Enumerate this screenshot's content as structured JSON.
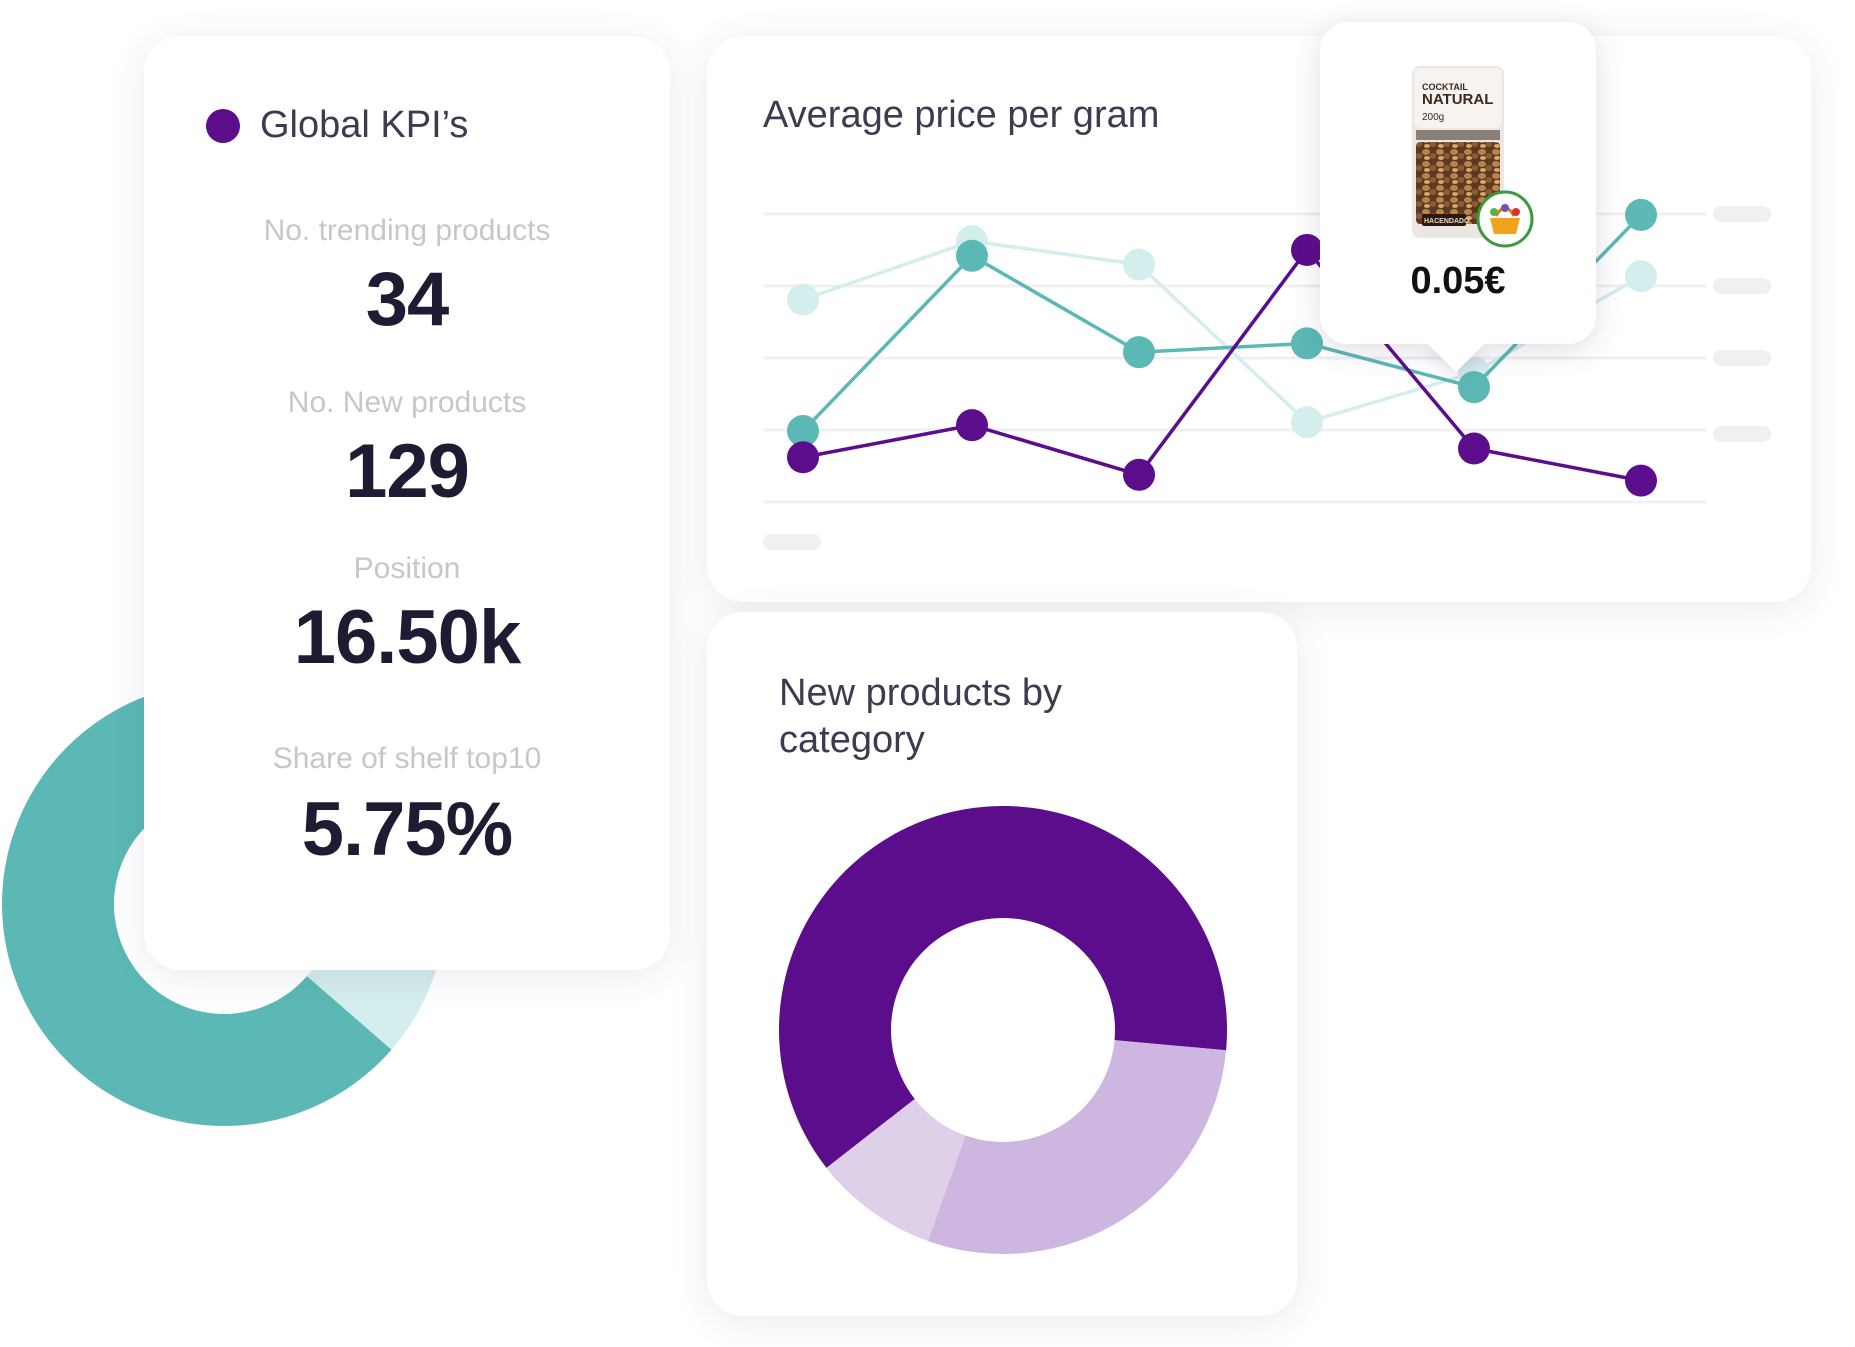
{
  "kpi_card": {
    "title": "Global KPI’s",
    "metrics": [
      {
        "label": "No. trending products",
        "value": "34"
      },
      {
        "label": "No. New products",
        "value": "129"
      },
      {
        "label": "Position",
        "value": "16.50k"
      },
      {
        "label": "Share of shelf top10",
        "value": "5.75%"
      }
    ]
  },
  "line_chart_card": {
    "title": "Average price per gram"
  },
  "tooltip": {
    "product_brand": "COCKTAIL",
    "product_name": "NATURAL",
    "product_weight": "200g",
    "product_maker": "HACENDADO",
    "price": "0.05€"
  },
  "donut_card": {
    "title": "New products by category"
  },
  "colors": {
    "purple": "#5b0d8b",
    "teal": "#5bb8b4",
    "light_teal": "#d4eded",
    "lavender": "#cdb6df",
    "light_lavender": "#ddd0e8"
  },
  "chart_data": [
    {
      "type": "line",
      "title": "Average price per gram",
      "x": [
        1,
        2,
        3,
        4,
        5,
        6
      ],
      "ylim": [
        0,
        100
      ],
      "grid": true,
      "series": [
        {
          "values": [
            70,
            90,
            82,
            28,
            45,
            78
          ]
        },
        {
          "values": [
            25,
            85,
            52,
            55,
            40,
            99
          ]
        },
        {
          "values": [
            16,
            27,
            10,
            87,
            19,
            8
          ]
        }
      ]
    },
    {
      "type": "pie",
      "title": "New products by category",
      "values": [
        62,
        29,
        9
      ]
    },
    {
      "type": "pie",
      "values": [
        86,
        14
      ]
    }
  ]
}
